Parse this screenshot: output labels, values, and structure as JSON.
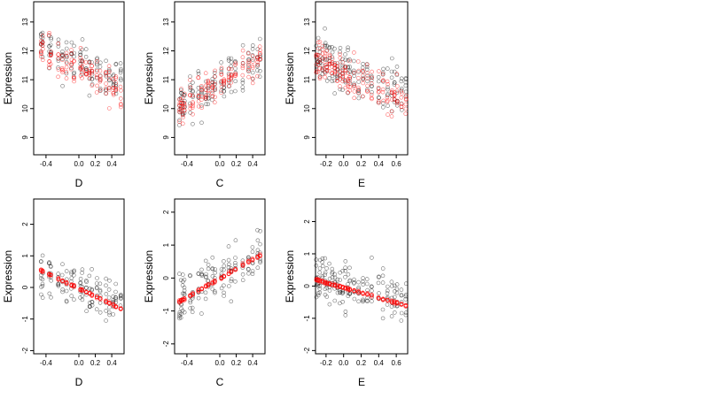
{
  "chart_data": [
    {
      "type": "scatter",
      "xlabel": "D",
      "ylabel": "Expression",
      "xlim": [
        -0.55,
        0.55
      ],
      "ylim": [
        8.4,
        13.7
      ],
      "xticks": [
        "-0.4",
        "0.0",
        "0.2",
        "0.4"
      ],
      "yticks": [
        "9",
        "10",
        "11",
        "12",
        "13"
      ],
      "x_levels": [
        -0.46,
        -0.44,
        -0.36,
        -0.34,
        -0.25,
        -0.2,
        -0.15,
        -0.09,
        -0.06,
        0.02,
        0.04,
        0.09,
        0.13,
        0.16,
        0.22,
        0.26,
        0.33,
        0.37,
        0.42,
        0.45,
        0.51
      ],
      "series": [
        {
          "color": "#000000",
          "trend": [
            12.3,
            10.8
          ],
          "spread": 0.8
        },
        {
          "color": "#ff0000",
          "trend": [
            12.2,
            10.6
          ],
          "spread": 0.6
        }
      ]
    },
    {
      "type": "scatter",
      "xlabel": "C",
      "ylabel": "Expression",
      "xlim": [
        -0.55,
        0.55
      ],
      "ylim": [
        8.4,
        13.7
      ],
      "xticks": [
        "-0.4",
        "0.0",
        "0.2",
        "0.4"
      ],
      "yticks": [
        "9",
        "10",
        "11",
        "12",
        "13"
      ],
      "x_levels": [
        -0.49,
        -0.47,
        -0.45,
        -0.43,
        -0.36,
        -0.33,
        -0.26,
        -0.22,
        -0.17,
        -0.14,
        -0.09,
        -0.06,
        0.02,
        0.05,
        0.11,
        0.14,
        0.19,
        0.28,
        0.35,
        0.4,
        0.46,
        0.49
      ],
      "series": [
        {
          "color": "#000000",
          "trend": [
            10.0,
            11.8
          ],
          "spread": 0.8
        },
        {
          "color": "#ff0000",
          "trend": [
            10.0,
            11.7
          ],
          "spread": 0.6
        }
      ]
    },
    {
      "type": "scatter",
      "xlabel": "E",
      "ylabel": "Expression",
      "xlim": [
        -0.32,
        0.73
      ],
      "ylim": [
        8.4,
        13.7
      ],
      "xticks": [
        "-0.2",
        "0.0",
        "0.2",
        "0.4",
        "0.6"
      ],
      "yticks": [
        "9",
        "10",
        "11",
        "12",
        "13"
      ],
      "x_levels": [
        -0.31,
        -0.29,
        -0.27,
        -0.24,
        -0.21,
        -0.19,
        -0.16,
        -0.13,
        -0.1,
        -0.07,
        -0.04,
        -0.01,
        0.02,
        0.05,
        0.07,
        0.12,
        0.17,
        0.22,
        0.27,
        0.32,
        0.4,
        0.45,
        0.5,
        0.55,
        0.58,
        0.61,
        0.66,
        0.71
      ],
      "series": [
        {
          "color": "#000000",
          "trend": [
            11.7,
            10.5
          ],
          "spread": 0.9
        },
        {
          "color": "#ff0000",
          "trend": [
            11.7,
            10.2
          ],
          "spread": 0.6
        }
      ]
    },
    {
      "type": "scatter",
      "xlabel": "D",
      "ylabel": "Expression",
      "xlim": [
        -0.55,
        0.55
      ],
      "ylim": [
        -2.1,
        2.8
      ],
      "xticks": [
        "-0.4",
        "0.0",
        "0.2",
        "0.4"
      ],
      "yticks": [
        "-2",
        "-1",
        "0",
        "1",
        "2"
      ],
      "x_levels": [
        -0.46,
        -0.44,
        -0.36,
        -0.34,
        -0.25,
        -0.2,
        -0.15,
        -0.09,
        -0.06,
        0.02,
        0.04,
        0.09,
        0.13,
        0.16,
        0.22,
        0.26,
        0.33,
        0.37,
        0.42,
        0.45,
        0.51
      ],
      "series": [
        {
          "color": "#000000",
          "trend": [
            0.6,
            -0.6
          ],
          "spread": 0.7
        },
        {
          "color": "#ff0000",
          "trend": [
            0.65,
            -0.72
          ],
          "spread": 0.04
        }
      ]
    },
    {
      "type": "scatter",
      "xlabel": "C",
      "ylabel": "Expression",
      "xlim": [
        -0.55,
        0.55
      ],
      "ylim": [
        -2.3,
        2.4
      ],
      "xticks": [
        "-0.4",
        "0.0",
        "0.2",
        "0.4"
      ],
      "yticks": [
        "-2",
        "-1",
        "0",
        "1",
        "2"
      ],
      "x_levels": [
        -0.49,
        -0.47,
        -0.45,
        -0.43,
        -0.36,
        -0.33,
        -0.26,
        -0.22,
        -0.17,
        -0.14,
        -0.09,
        -0.06,
        0.02,
        0.05,
        0.11,
        0.14,
        0.19,
        0.28,
        0.35,
        0.4,
        0.46,
        0.49
      ],
      "series": [
        {
          "color": "#000000",
          "trend": [
            -0.7,
            0.8
          ],
          "spread": 0.7
        },
        {
          "color": "#ff0000",
          "trend": [
            -0.8,
            0.78
          ],
          "spread": 0.04
        }
      ]
    },
    {
      "type": "scatter",
      "xlabel": "E",
      "ylabel": "Expression",
      "xlim": [
        -0.32,
        0.73
      ],
      "ylim": [
        -2.1,
        2.7
      ],
      "xticks": [
        "-0.2",
        "0.0",
        "0.2",
        "0.4",
        "0.6"
      ],
      "yticks": [
        "-2",
        "-1",
        "0",
        "1",
        "2"
      ],
      "x_levels": [
        -0.31,
        -0.29,
        -0.27,
        -0.24,
        -0.21,
        -0.19,
        -0.16,
        -0.13,
        -0.1,
        -0.07,
        -0.04,
        -0.01,
        0.02,
        0.05,
        0.07,
        0.12,
        0.17,
        0.22,
        0.27,
        0.32,
        0.4,
        0.45,
        0.5,
        0.55,
        0.58,
        0.61,
        0.66,
        0.71
      ],
      "series": [
        {
          "color": "#000000",
          "trend": [
            0.3,
            -0.6
          ],
          "spread": 0.75
        },
        {
          "color": "#ff0000",
          "trend": [
            0.2,
            -0.62
          ],
          "spread": 0.04
        }
      ]
    }
  ]
}
